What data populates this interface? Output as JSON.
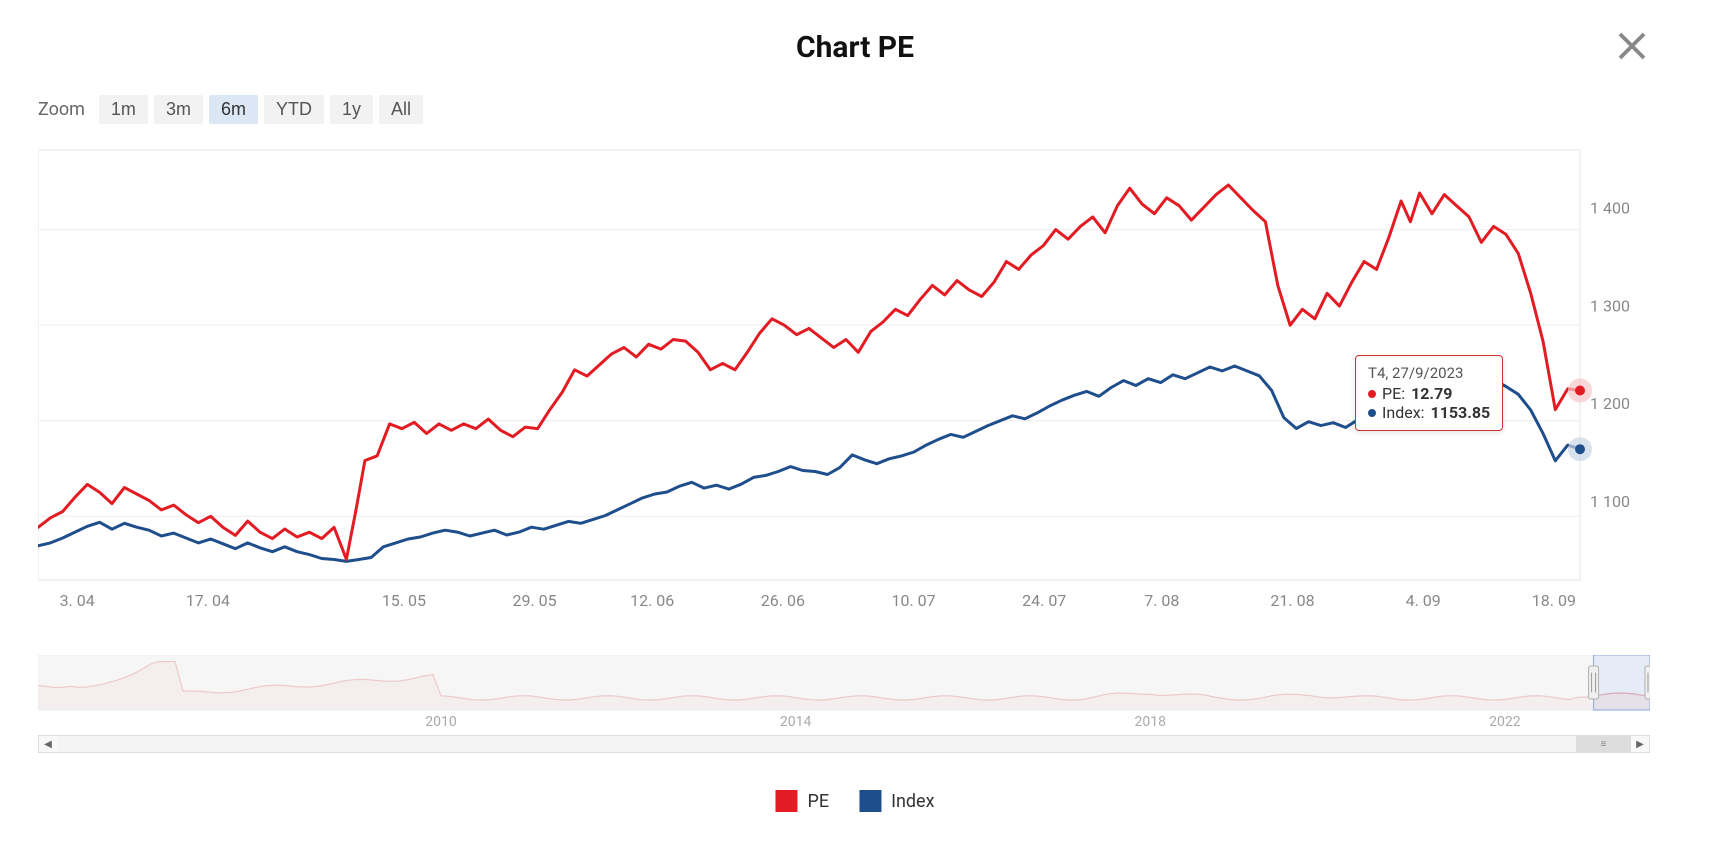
{
  "title": "Chart PE",
  "zoom": {
    "label": "Zoom",
    "options": [
      "1m",
      "3m",
      "6m",
      "YTD",
      "1y",
      "All"
    ],
    "selected": "6m"
  },
  "chart": {
    "type": "line",
    "left_axis": {
      "label": "PE",
      "min": 11.6,
      "max": 14.3,
      "ticks": [
        12,
        12.6,
        13.2,
        13.8
      ],
      "color": "#888",
      "fontsize": 16
    },
    "right_axis": {
      "label": "Index",
      "min": 1020,
      "max": 1460,
      "ticks": [
        1100,
        1200,
        1300,
        1400
      ],
      "tick_labels": [
        "1 100",
        "1 200",
        "1 300",
        "1 400"
      ],
      "color": "#888",
      "fontsize": 16
    },
    "x_axis": {
      "tick_labels": [
        "3. 04",
        "17. 04",
        "15. 05",
        "29. 05",
        "12. 06",
        "26. 06",
        "10. 07",
        "24. 07",
        "7. 08",
        "21. 08",
        "4. 09",
        "18. 09"
      ],
      "tick_positions": [
        0.03,
        0.13,
        0.28,
        0.38,
        0.47,
        0.57,
        0.67,
        0.77,
        0.86,
        0.96,
        1.06,
        1.16
      ],
      "color": "#888",
      "fontsize": 16
    },
    "grid_color": "#eeeeee",
    "background": "#ffffff",
    "line_width": 3,
    "series_pe": {
      "name": "PE",
      "color": "#e31b23",
      "axis": "left",
      "data": [
        [
          0.0,
          11.93
        ],
        [
          0.008,
          11.99
        ],
        [
          0.016,
          12.03
        ],
        [
          0.024,
          12.12
        ],
        [
          0.032,
          12.2
        ],
        [
          0.04,
          12.15
        ],
        [
          0.048,
          12.08
        ],
        [
          0.056,
          12.18
        ],
        [
          0.064,
          12.14
        ],
        [
          0.072,
          12.1
        ],
        [
          0.08,
          12.04
        ],
        [
          0.088,
          12.07
        ],
        [
          0.096,
          12.01
        ],
        [
          0.104,
          11.96
        ],
        [
          0.112,
          12.0
        ],
        [
          0.12,
          11.93
        ],
        [
          0.128,
          11.88
        ],
        [
          0.136,
          11.97
        ],
        [
          0.144,
          11.9
        ],
        [
          0.152,
          11.86
        ],
        [
          0.16,
          11.92
        ],
        [
          0.168,
          11.87
        ],
        [
          0.176,
          11.9
        ],
        [
          0.184,
          11.86
        ],
        [
          0.192,
          11.93
        ],
        [
          0.2,
          11.73
        ],
        [
          0.206,
          12.03
        ],
        [
          0.212,
          12.35
        ],
        [
          0.22,
          12.38
        ],
        [
          0.228,
          12.58
        ],
        [
          0.236,
          12.55
        ],
        [
          0.244,
          12.59
        ],
        [
          0.252,
          12.52
        ],
        [
          0.26,
          12.58
        ],
        [
          0.268,
          12.54
        ],
        [
          0.276,
          12.58
        ],
        [
          0.284,
          12.55
        ],
        [
          0.292,
          12.61
        ],
        [
          0.3,
          12.54
        ],
        [
          0.308,
          12.5
        ],
        [
          0.316,
          12.56
        ],
        [
          0.324,
          12.55
        ],
        [
          0.332,
          12.67
        ],
        [
          0.34,
          12.78
        ],
        [
          0.348,
          12.92
        ],
        [
          0.356,
          12.88
        ],
        [
          0.364,
          12.95
        ],
        [
          0.372,
          13.02
        ],
        [
          0.38,
          13.06
        ],
        [
          0.388,
          13.0
        ],
        [
          0.396,
          13.08
        ],
        [
          0.404,
          13.05
        ],
        [
          0.412,
          13.11
        ],
        [
          0.42,
          13.1
        ],
        [
          0.428,
          13.03
        ],
        [
          0.436,
          12.92
        ],
        [
          0.444,
          12.96
        ],
        [
          0.452,
          12.92
        ],
        [
          0.46,
          13.03
        ],
        [
          0.468,
          13.15
        ],
        [
          0.476,
          13.24
        ],
        [
          0.484,
          13.2
        ],
        [
          0.492,
          13.14
        ],
        [
          0.5,
          13.18
        ],
        [
          0.508,
          13.12
        ],
        [
          0.516,
          13.06
        ],
        [
          0.524,
          13.11
        ],
        [
          0.532,
          13.03
        ],
        [
          0.54,
          13.16
        ],
        [
          0.548,
          13.22
        ],
        [
          0.556,
          13.3
        ],
        [
          0.564,
          13.26
        ],
        [
          0.572,
          13.36
        ],
        [
          0.58,
          13.45
        ],
        [
          0.588,
          13.39
        ],
        [
          0.596,
          13.48
        ],
        [
          0.604,
          13.42
        ],
        [
          0.612,
          13.38
        ],
        [
          0.62,
          13.47
        ],
        [
          0.628,
          13.6
        ],
        [
          0.636,
          13.55
        ],
        [
          0.644,
          13.64
        ],
        [
          0.652,
          13.7
        ],
        [
          0.66,
          13.8
        ],
        [
          0.668,
          13.74
        ],
        [
          0.676,
          13.82
        ],
        [
          0.684,
          13.88
        ],
        [
          0.692,
          13.78
        ],
        [
          0.7,
          13.95
        ],
        [
          0.708,
          14.06
        ],
        [
          0.716,
          13.96
        ],
        [
          0.724,
          13.9
        ],
        [
          0.732,
          14.0
        ],
        [
          0.74,
          13.95
        ],
        [
          0.748,
          13.86
        ],
        [
          0.756,
          13.94
        ],
        [
          0.764,
          14.02
        ],
        [
          0.772,
          14.08
        ],
        [
          0.78,
          14.0
        ],
        [
          0.788,
          13.92
        ],
        [
          0.796,
          13.85
        ],
        [
          0.804,
          13.45
        ],
        [
          0.812,
          13.2
        ],
        [
          0.82,
          13.3
        ],
        [
          0.828,
          13.24
        ],
        [
          0.836,
          13.4
        ],
        [
          0.844,
          13.32
        ],
        [
          0.852,
          13.47
        ],
        [
          0.86,
          13.6
        ],
        [
          0.868,
          13.55
        ],
        [
          0.876,
          13.75
        ],
        [
          0.884,
          13.98
        ],
        [
          0.89,
          13.85
        ],
        [
          0.896,
          14.03
        ],
        [
          0.904,
          13.9
        ],
        [
          0.912,
          14.02
        ],
        [
          0.92,
          13.95
        ],
        [
          0.928,
          13.88
        ],
        [
          0.936,
          13.72
        ],
        [
          0.944,
          13.82
        ],
        [
          0.952,
          13.77
        ],
        [
          0.96,
          13.65
        ],
        [
          0.968,
          13.4
        ],
        [
          0.976,
          13.1
        ],
        [
          0.984,
          12.67
        ],
        [
          0.992,
          12.8
        ],
        [
          1.0,
          12.79
        ]
      ]
    },
    "series_index": {
      "name": "Index",
      "color": "#1f4e8c",
      "axis": "right",
      "data": [
        [
          0.0,
          1055
        ],
        [
          0.008,
          1058
        ],
        [
          0.016,
          1063
        ],
        [
          0.024,
          1069
        ],
        [
          0.032,
          1075
        ],
        [
          0.04,
          1079
        ],
        [
          0.048,
          1072
        ],
        [
          0.056,
          1078
        ],
        [
          0.064,
          1074
        ],
        [
          0.072,
          1071
        ],
        [
          0.08,
          1065
        ],
        [
          0.088,
          1068
        ],
        [
          0.096,
          1063
        ],
        [
          0.104,
          1058
        ],
        [
          0.112,
          1062
        ],
        [
          0.12,
          1057
        ],
        [
          0.128,
          1052
        ],
        [
          0.136,
          1058
        ],
        [
          0.144,
          1053
        ],
        [
          0.152,
          1049
        ],
        [
          0.16,
          1054
        ],
        [
          0.168,
          1049
        ],
        [
          0.176,
          1046
        ],
        [
          0.184,
          1042
        ],
        [
          0.192,
          1041
        ],
        [
          0.2,
          1039
        ],
        [
          0.208,
          1041
        ],
        [
          0.216,
          1043
        ],
        [
          0.224,
          1054
        ],
        [
          0.232,
          1058
        ],
        [
          0.24,
          1062
        ],
        [
          0.248,
          1064
        ],
        [
          0.256,
          1068
        ],
        [
          0.264,
          1071
        ],
        [
          0.272,
          1069
        ],
        [
          0.28,
          1065
        ],
        [
          0.288,
          1068
        ],
        [
          0.296,
          1071
        ],
        [
          0.304,
          1066
        ],
        [
          0.312,
          1069
        ],
        [
          0.32,
          1074
        ],
        [
          0.328,
          1072
        ],
        [
          0.336,
          1076
        ],
        [
          0.344,
          1080
        ],
        [
          0.352,
          1078
        ],
        [
          0.36,
          1082
        ],
        [
          0.368,
          1086
        ],
        [
          0.376,
          1092
        ],
        [
          0.384,
          1098
        ],
        [
          0.392,
          1104
        ],
        [
          0.4,
          1108
        ],
        [
          0.408,
          1110
        ],
        [
          0.416,
          1116
        ],
        [
          0.424,
          1120
        ],
        [
          0.432,
          1114
        ],
        [
          0.44,
          1117
        ],
        [
          0.448,
          1113
        ],
        [
          0.456,
          1118
        ],
        [
          0.464,
          1125
        ],
        [
          0.472,
          1127
        ],
        [
          0.48,
          1131
        ],
        [
          0.488,
          1136
        ],
        [
          0.496,
          1132
        ],
        [
          0.504,
          1131
        ],
        [
          0.512,
          1128
        ],
        [
          0.52,
          1135
        ],
        [
          0.528,
          1148
        ],
        [
          0.536,
          1143
        ],
        [
          0.544,
          1139
        ],
        [
          0.552,
          1144
        ],
        [
          0.56,
          1147
        ],
        [
          0.568,
          1151
        ],
        [
          0.576,
          1158
        ],
        [
          0.584,
          1164
        ],
        [
          0.592,
          1169
        ],
        [
          0.6,
          1166
        ],
        [
          0.608,
          1172
        ],
        [
          0.616,
          1178
        ],
        [
          0.624,
          1183
        ],
        [
          0.632,
          1188
        ],
        [
          0.64,
          1185
        ],
        [
          0.648,
          1191
        ],
        [
          0.656,
          1198
        ],
        [
          0.664,
          1204
        ],
        [
          0.672,
          1209
        ],
        [
          0.68,
          1213
        ],
        [
          0.688,
          1208
        ],
        [
          0.696,
          1217
        ],
        [
          0.704,
          1224
        ],
        [
          0.712,
          1219
        ],
        [
          0.72,
          1226
        ],
        [
          0.728,
          1222
        ],
        [
          0.736,
          1230
        ],
        [
          0.744,
          1226
        ],
        [
          0.752,
          1232
        ],
        [
          0.76,
          1238
        ],
        [
          0.768,
          1234
        ],
        [
          0.776,
          1239
        ],
        [
          0.784,
          1234
        ],
        [
          0.792,
          1229
        ],
        [
          0.8,
          1214
        ],
        [
          0.808,
          1186
        ],
        [
          0.816,
          1175
        ],
        [
          0.824,
          1182
        ],
        [
          0.832,
          1178
        ],
        [
          0.84,
          1181
        ],
        [
          0.848,
          1176
        ],
        [
          0.856,
          1184
        ],
        [
          0.864,
          1192
        ],
        [
          0.872,
          1201
        ],
        [
          0.88,
          1214
        ],
        [
          0.888,
          1222
        ],
        [
          0.896,
          1230
        ],
        [
          0.904,
          1234
        ],
        [
          0.912,
          1241
        ],
        [
          0.92,
          1236
        ],
        [
          0.928,
          1227
        ],
        [
          0.936,
          1219
        ],
        [
          0.944,
          1225
        ],
        [
          0.952,
          1218
        ],
        [
          0.96,
          1210
        ],
        [
          0.968,
          1194
        ],
        [
          0.976,
          1170
        ],
        [
          0.984,
          1142
        ],
        [
          0.992,
          1158
        ],
        [
          1.0,
          1153.85
        ]
      ]
    },
    "highlight": {
      "x": 1.0,
      "pe_marker_color": "#e31b23",
      "pe_halo_color": "#f7c4c6",
      "idx_marker_color": "#1f4e8c",
      "idx_halo_color": "#c8d6e6"
    }
  },
  "tooltip": {
    "header": "T4, 27/9/2023",
    "pe_label": "PE:",
    "pe_value": "12.79",
    "pe_color": "#e31b23",
    "idx_label": "Index:",
    "idx_value": "1153.85",
    "idx_color": "#1f4e8c"
  },
  "navigator": {
    "tick_labels": [
      "2010",
      "2014",
      "2018",
      "2022"
    ],
    "tick_positions": [
      0.25,
      0.47,
      0.69,
      0.91
    ],
    "series_color": "#e48a8a",
    "fill_color": "#f7dada",
    "mask_color": "#f4f4f4",
    "selection_start": 0.965,
    "selection_end": 1.0,
    "handle_color": "#b0b0b0",
    "scrollbar_thumb_start": 0.965,
    "scrollbar_thumb_end": 1.0
  },
  "legend": {
    "pe": "PE",
    "pe_color": "#e31b23",
    "index": "Index",
    "index_color": "#1f4e8c"
  }
}
